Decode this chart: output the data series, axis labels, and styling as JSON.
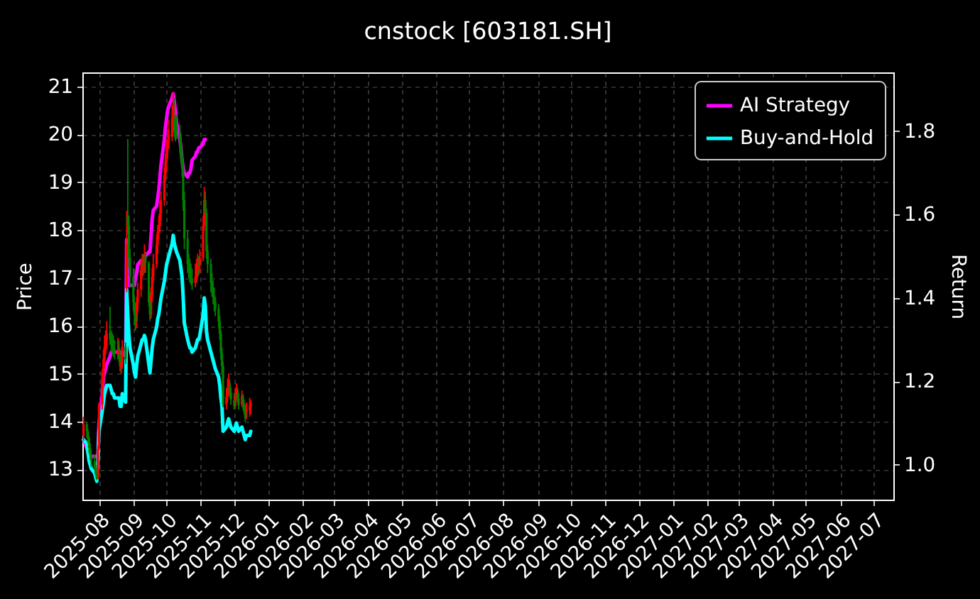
{
  "chart_data": {
    "type": "candlestick",
    "title": "cnstock [603181.SH]",
    "ylabel": "Price",
    "y2label": "Return",
    "x": [
      "2025-07-18",
      "2025-07-21",
      "2025-07-22",
      "2025-07-23",
      "2025-07-24",
      "2025-07-25",
      "2025-07-28",
      "2025-07-29",
      "2025-07-30",
      "2025-07-31",
      "2025-08-01",
      "2025-08-04",
      "2025-08-05",
      "2025-08-06",
      "2025-08-07",
      "2025-08-08",
      "2025-08-11",
      "2025-08-12",
      "2025-08-13",
      "2025-08-14",
      "2025-08-15",
      "2025-08-18",
      "2025-08-19",
      "2025-08-20",
      "2025-08-21",
      "2025-08-22",
      "2025-08-25",
      "2025-08-26",
      "2025-08-27",
      "2025-08-28",
      "2025-08-29",
      "2025-09-01",
      "2025-09-02",
      "2025-09-03",
      "2025-09-04",
      "2025-09-05",
      "2025-09-08",
      "2025-09-09",
      "2025-09-10",
      "2025-09-11",
      "2025-09-12",
      "2025-09-15",
      "2025-09-16",
      "2025-09-17",
      "2025-09-18",
      "2025-09-19",
      "2025-09-22",
      "2025-09-23",
      "2025-09-24",
      "2025-09-25",
      "2025-09-26",
      "2025-09-29",
      "2025-09-30",
      "2025-10-01",
      "2025-10-02",
      "2025-10-03",
      "2025-10-06",
      "2025-10-07",
      "2025-10-08",
      "2025-10-09",
      "2025-10-10",
      "2025-10-13",
      "2025-10-14",
      "2025-10-15",
      "2025-10-16",
      "2025-10-17",
      "2025-10-20",
      "2025-10-21",
      "2025-10-22",
      "2025-10-23",
      "2025-10-24",
      "2025-10-27",
      "2025-10-28",
      "2025-10-29",
      "2025-10-30",
      "2025-10-31",
      "2025-11-03",
      "2025-11-04",
      "2025-11-05",
      "2025-11-06",
      "2025-11-07",
      "2025-11-10",
      "2025-11-11",
      "2025-11-12",
      "2025-11-13",
      "2025-11-14",
      "2025-11-17",
      "2025-11-18",
      "2025-11-19",
      "2025-11-20",
      "2025-11-21",
      "2025-11-24",
      "2025-11-25",
      "2025-11-26",
      "2025-11-27",
      "2025-11-28",
      "2025-12-01",
      "2025-12-02",
      "2025-12-03",
      "2025-12-04",
      "2025-12-05",
      "2025-12-08",
      "2025-12-09",
      "2025-12-10",
      "2025-12-11",
      "2025-12-12",
      "2025-12-15",
      "2025-12-16"
    ],
    "ohlc": [
      [
        13.7,
        14.1,
        13.6,
        13.95
      ],
      [
        13.95,
        14.0,
        13.65,
        13.8
      ],
      [
        13.8,
        13.85,
        13.55,
        13.65
      ],
      [
        13.65,
        13.7,
        13.35,
        13.45
      ],
      [
        13.45,
        13.55,
        13.2,
        13.3
      ],
      [
        13.3,
        13.4,
        13.05,
        13.17
      ],
      [
        13.17,
        13.3,
        13.0,
        13.05
      ],
      [
        13.05,
        13.1,
        12.85,
        12.9
      ],
      [
        12.9,
        12.95,
        12.78,
        12.8
      ],
      [
        12.8,
        13.5,
        12.8,
        13.43
      ],
      [
        13.43,
        14.4,
        13.4,
        14.36
      ],
      [
        14.36,
        15.1,
        14.25,
        15.03
      ],
      [
        14.9,
        15.5,
        14.8,
        15.3
      ],
      [
        15.3,
        15.8,
        15.1,
        15.56
      ],
      [
        15.56,
        15.9,
        15.4,
        15.69
      ],
      [
        15.69,
        16.1,
        15.5,
        15.83
      ],
      [
        15.86,
        16.4,
        15.6,
        15.72
      ],
      [
        15.72,
        15.9,
        15.45,
        15.64
      ],
      [
        15.64,
        15.85,
        15.4,
        15.56
      ],
      [
        15.56,
        15.8,
        15.35,
        15.52
      ],
      [
        15.52,
        15.7,
        15.3,
        15.43
      ],
      [
        15.4,
        15.75,
        15.3,
        15.5
      ],
      [
        15.55,
        15.7,
        15.25,
        15.33
      ],
      [
        15.33,
        15.5,
        15.05,
        15.16
      ],
      [
        15.12,
        15.4,
        15.0,
        15.24
      ],
      [
        15.2,
        15.7,
        15.1,
        15.56
      ],
      [
        15.56,
        15.65,
        15.2,
        15.3
      ],
      [
        16.8,
        18.4,
        16.7,
        17.7
      ],
      [
        18.3,
        19.9,
        17.9,
        18.09
      ],
      [
        18.09,
        18.3,
        17.2,
        17.42
      ],
      [
        17.42,
        17.6,
        16.8,
        17.02
      ],
      [
        17.02,
        17.2,
        16.3,
        16.49
      ],
      [
        16.49,
        16.6,
        16.0,
        16.23
      ],
      [
        16.23,
        16.4,
        15.9,
        16.09
      ],
      [
        16.09,
        16.6,
        15.95,
        16.49
      ],
      [
        16.49,
        16.9,
        16.3,
        16.76
      ],
      [
        16.76,
        17.4,
        16.6,
        17.16
      ],
      [
        17.16,
        17.5,
        17.0,
        17.29
      ],
      [
        17.29,
        17.5,
        17.05,
        17.25
      ],
      [
        17.25,
        17.7,
        17.1,
        17.42
      ],
      [
        17.45,
        17.55,
        17.1,
        17.31
      ],
      [
        17.31,
        17.35,
        16.4,
        16.49
      ],
      [
        16.49,
        16.7,
        16.1,
        16.23
      ],
      [
        16.23,
        16.8,
        16.15,
        16.63
      ],
      [
        16.63,
        17.2,
        16.5,
        17.02
      ],
      [
        17.02,
        17.5,
        16.9,
        17.29
      ],
      [
        17.29,
        17.9,
        17.2,
        17.69
      ],
      [
        17.69,
        18.1,
        17.5,
        17.96
      ],
      [
        17.96,
        18.3,
        17.8,
        18.09
      ],
      [
        18.09,
        18.6,
        17.95,
        18.35
      ],
      [
        18.35,
        18.8,
        18.2,
        18.62
      ],
      [
        18.62,
        19.3,
        18.5,
        19.15
      ],
      [
        19.15,
        19.6,
        19.0,
        19.42
      ],
      [
        19.42,
        19.9,
        19.2,
        19.68
      ],
      [
        19.68,
        20.1,
        19.5,
        19.82
      ],
      [
        19.82,
        20.3,
        19.7,
        19.95
      ],
      [
        19.95,
        20.6,
        19.85,
        20.35
      ],
      [
        20.35,
        20.88,
        20.2,
        20.62
      ],
      [
        20.3,
        20.75,
        19.95,
        20.05
      ],
      [
        20.0,
        20.4,
        19.85,
        19.9
      ],
      [
        20.18,
        20.4,
        19.9,
        20.05
      ],
      [
        20.05,
        20.2,
        19.6,
        19.82
      ],
      [
        19.82,
        20.0,
        19.4,
        19.55
      ],
      [
        19.55,
        19.7,
        19.1,
        19.29
      ],
      [
        19.29,
        19.4,
        18.4,
        18.62
      ],
      [
        18.62,
        18.8,
        17.6,
        17.82
      ],
      [
        17.82,
        18.0,
        17.1,
        17.29
      ],
      [
        17.29,
        17.5,
        17.0,
        17.16
      ],
      [
        17.16,
        17.4,
        16.9,
        17.02
      ],
      [
        17.02,
        17.3,
        16.85,
        16.98
      ],
      [
        16.98,
        17.2,
        16.75,
        16.89
      ],
      [
        16.89,
        17.3,
        16.8,
        17.02
      ],
      [
        17.02,
        17.4,
        16.9,
        17.16
      ],
      [
        17.16,
        17.5,
        17.0,
        17.29
      ],
      [
        17.29,
        17.45,
        17.05,
        17.26
      ],
      [
        17.26,
        17.6,
        17.1,
        17.42
      ],
      [
        17.42,
        18.3,
        17.35,
        18.09
      ],
      [
        18.09,
        18.9,
        18.0,
        18.62
      ],
      [
        18.62,
        18.8,
        18.2,
        18.35
      ],
      [
        18.35,
        18.45,
        17.4,
        17.56
      ],
      [
        17.56,
        17.7,
        17.1,
        17.29
      ],
      [
        17.29,
        17.4,
        16.7,
        16.89
      ],
      [
        16.89,
        17.1,
        16.6,
        16.76
      ],
      [
        16.76,
        16.95,
        16.45,
        16.63
      ],
      [
        16.63,
        16.8,
        16.3,
        16.49
      ],
      [
        16.49,
        16.6,
        16.2,
        16.36
      ],
      [
        16.36,
        16.45,
        15.95,
        16.09
      ],
      [
        16.09,
        16.2,
        15.7,
        15.83
      ],
      [
        15.83,
        15.9,
        15.3,
        15.43
      ],
      [
        15.43,
        15.55,
        15.0,
        15.16
      ],
      [
        15.16,
        15.25,
        14.3,
        14.36
      ],
      [
        14.36,
        14.7,
        14.25,
        14.52
      ],
      [
        14.52,
        14.9,
        14.4,
        14.71
      ],
      [
        14.74,
        15.0,
        14.55,
        14.84
      ],
      [
        14.8,
        14.88,
        14.5,
        14.6
      ],
      [
        14.6,
        14.7,
        14.35,
        14.46
      ],
      [
        14.44,
        14.6,
        14.25,
        14.32
      ],
      [
        14.32,
        14.7,
        14.28,
        14.55
      ],
      [
        14.57,
        14.8,
        14.45,
        14.68
      ],
      [
        14.66,
        14.72,
        14.4,
        14.48
      ],
      [
        14.48,
        14.6,
        14.25,
        14.34
      ],
      [
        14.36,
        14.65,
        14.3,
        14.54
      ],
      [
        14.52,
        14.58,
        14.25,
        14.4
      ],
      [
        14.38,
        14.45,
        14.15,
        14.21
      ],
      [
        14.2,
        14.35,
        14.0,
        14.07
      ],
      [
        14.08,
        14.4,
        14.05,
        14.26
      ],
      [
        14.24,
        14.5,
        14.1,
        14.31
      ],
      [
        14.3,
        14.45,
        14.15,
        14.39
      ]
    ],
    "colors": [
      "#ff0000",
      "#008000",
      "#008000",
      "#008000",
      "#008000",
      "#008000",
      "#008000",
      "#008000",
      "#008000",
      "#ff0000",
      "#ff0000",
      "#ff0000",
      "#ff0000",
      "#ff0000",
      "#ff0000",
      "#ff0000",
      "#008000",
      "#008000",
      "#008000",
      "#008000",
      "#008000",
      "#ff0000",
      "#008000",
      "#008000",
      "#ff0000",
      "#ff0000",
      "#008000",
      "#ff0000",
      "#008000",
      "#008000",
      "#008000",
      "#008000",
      "#008000",
      "#008000",
      "#ff0000",
      "#ff0000",
      "#ff0000",
      "#ff0000",
      "#008000",
      "#ff0000",
      "#008000",
      "#008000",
      "#008000",
      "#ff0000",
      "#ff0000",
      "#ff0000",
      "#ff0000",
      "#ff0000",
      "#ff0000",
      "#ff0000",
      "#ff0000",
      "#ff0000",
      "#ff0000",
      "#ff0000",
      "#ff0000",
      "#ff0000",
      "#ff0000",
      "#ff0000",
      "#008000",
      "#008000",
      "#008000",
      "#008000",
      "#008000",
      "#008000",
      "#008000",
      "#008000",
      "#008000",
      "#008000",
      "#008000",
      "#008000",
      "#008000",
      "#ff0000",
      "#ff0000",
      "#ff0000",
      "#008000",
      "#ff0000",
      "#ff0000",
      "#ff0000",
      "#008000",
      "#008000",
      "#008000",
      "#008000",
      "#008000",
      "#008000",
      "#008000",
      "#008000",
      "#008000",
      "#008000",
      "#008000",
      "#008000",
      "#008000",
      "#ff0000",
      "#ff0000",
      "#ff0000",
      "#008000",
      "#008000",
      "#008000",
      "#ff0000",
      "#ff0000",
      "#008000",
      "#008000",
      "#ff0000",
      "#008000",
      "#008000",
      "#008000",
      "#ff0000",
      "#ff0000",
      "#ff0000"
    ],
    "series": [
      {
        "name": "AI Strategy",
        "type": "line",
        "axis": "y2",
        "color": "#ff00ff",
        "values": [
          1.06,
          1.04,
          1.03,
          1.02,
          1.02,
          1.02,
          1.02,
          1.02,
          1.02,
          1.02,
          1.1,
          1.17,
          1.21,
          1.22,
          1.23,
          1.24,
          1.26,
          1.27,
          1.27,
          1.27,
          1.27,
          1.27,
          1.27,
          1.26,
          1.26,
          1.27,
          1.26,
          1.54,
          1.46,
          1.43,
          1.43,
          1.43,
          1.43,
          1.45,
          1.46,
          1.48,
          1.49,
          1.49,
          1.49,
          1.5,
          1.5,
          1.51,
          1.51,
          1.55,
          1.59,
          1.61,
          1.62,
          1.64,
          1.66,
          1.69,
          1.72,
          1.78,
          1.81,
          1.83,
          1.85,
          1.86,
          1.88,
          1.89,
          1.87,
          1.85,
          1.82,
          1.78,
          1.76,
          1.73,
          1.71,
          1.7,
          1.69,
          1.7,
          1.7,
          1.71,
          1.73,
          1.74,
          1.75,
          1.75,
          1.76,
          1.76,
          1.77,
          1.78,
          1.78,
          null,
          null,
          null,
          null,
          null,
          null,
          null,
          null,
          null,
          null,
          null,
          null,
          null,
          null,
          null,
          null,
          null,
          null,
          null,
          null,
          null,
          null,
          null,
          null,
          null,
          null,
          null,
          null,
          null
        ]
      },
      {
        "name": "Buy-and-Hold",
        "type": "line",
        "axis": "y2",
        "color": "#00ffff",
        "values": [
          1.06,
          1.05,
          1.03,
          1.01,
          1.0,
          0.99,
          0.98,
          0.97,
          0.96,
          1.01,
          1.08,
          1.13,
          1.15,
          1.17,
          1.18,
          1.19,
          1.19,
          1.18,
          1.17,
          1.17,
          1.16,
          1.16,
          1.16,
          1.14,
          1.14,
          1.17,
          1.15,
          1.42,
          1.36,
          1.31,
          1.28,
          1.24,
          1.22,
          1.21,
          1.24,
          1.26,
          1.29,
          1.3,
          1.3,
          1.31,
          1.3,
          1.24,
          1.22,
          1.25,
          1.28,
          1.3,
          1.33,
          1.35,
          1.36,
          1.38,
          1.4,
          1.44,
          1.46,
          1.48,
          1.49,
          1.5,
          1.53,
          1.55,
          1.53,
          1.52,
          1.51,
          1.49,
          1.47,
          1.45,
          1.4,
          1.34,
          1.3,
          1.29,
          1.28,
          1.28,
          1.27,
          1.28,
          1.29,
          1.3,
          1.3,
          1.31,
          1.36,
          1.4,
          1.38,
          1.32,
          1.3,
          1.27,
          1.26,
          1.25,
          1.24,
          1.23,
          1.21,
          1.19,
          1.16,
          1.14,
          1.08,
          1.09,
          1.1,
          1.11,
          1.1,
          1.09,
          1.08,
          1.09,
          1.1,
          1.09,
          1.08,
          1.09,
          1.08,
          1.07,
          1.06,
          1.07,
          1.07,
          1.08
        ]
      }
    ],
    "xlim": [
      "2025-07-17",
      "2027-07-19"
    ],
    "xticks": [
      "2025-08",
      "2025-09",
      "2025-10",
      "2025-11",
      "2025-12",
      "2026-01",
      "2026-02",
      "2026-03",
      "2026-04",
      "2026-05",
      "2026-06",
      "2026-07",
      "2026-08",
      "2026-09",
      "2026-10",
      "2026-11",
      "2026-12",
      "2027-01",
      "2027-02",
      "2027-03",
      "2027-04",
      "2027-05",
      "2027-06",
      "2027-07"
    ],
    "ylim": [
      12.37,
      21.29
    ],
    "yticks": [
      13,
      14,
      15,
      16,
      17,
      18,
      19,
      20,
      21
    ],
    "y2lim": [
      0.916,
      1.941
    ],
    "y2ticks": [
      {
        "value": 1,
        "label": "1.0"
      },
      1.2,
      1.4,
      1.6,
      1.8
    ],
    "grid": true,
    "legend": "top right"
  }
}
